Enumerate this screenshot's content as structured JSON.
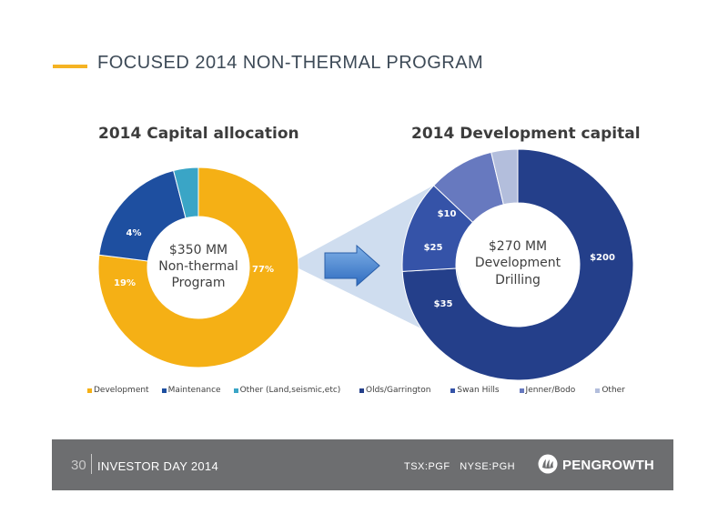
{
  "header": {
    "title": "FOCUSED 2014 NON-THERMAL PROGRAM",
    "accent_color": "#f5b323"
  },
  "chart_data": [
    {
      "type": "pie",
      "variant": "donut",
      "title": "2014 Capital allocation",
      "center_label": [
        "$350 MM",
        "Non-thermal",
        "Program"
      ],
      "categories": [
        "Development",
        "Maintenance",
        "Other (Land,seismic,etc)"
      ],
      "values": [
        77,
        19,
        4
      ],
      "data_labels": [
        "77%",
        "19%",
        "4%"
      ],
      "colors": [
        "#f5b015",
        "#1e4fa0",
        "#3aa5c6"
      ],
      "legend_position": "bottom"
    },
    {
      "type": "pie",
      "variant": "donut",
      "title": "2014 Development capital",
      "center_label": [
        "$270 MM",
        "Development",
        "Drilling"
      ],
      "categories": [
        "Olds/Garrington",
        "Swan Hills",
        "Jenner/Bodo",
        "Other"
      ],
      "values": [
        200,
        35,
        25,
        10
      ],
      "data_labels": [
        "$200",
        "$35",
        "$25",
        "$10"
      ],
      "colors": [
        "#243f8a",
        "#3553a8",
        "#6779bf",
        "#b3bedc"
      ],
      "legend_position": "bottom"
    }
  ],
  "footer": {
    "page_number": "30",
    "event": "INVESTOR DAY 2014",
    "ticker": "TSX:PGF   NYSE:PGH",
    "logo_text": "PENGROWTH"
  }
}
